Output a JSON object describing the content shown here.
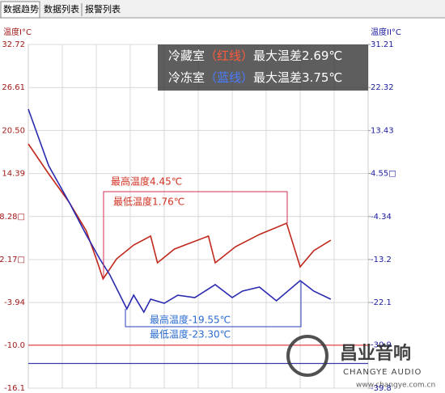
{
  "tabs": [
    "数据趋势",
    "数据列表",
    "报警列表"
  ],
  "chart_data": {
    "type": "line",
    "ylabel": "温度I°C",
    "y2label": "温度II°C",
    "xlim": [
      0,
      100
    ],
    "ylim": [
      -16.1,
      32.72
    ],
    "yticks": [
      32.72,
      26.61,
      {
        "value": 20.5,
        "label": "20.50"
      },
      14.39,
      {
        "value": 8.28,
        "label": "8.28□"
      },
      {
        "value": 2.17,
        "label": "2.17□"
      },
      -3.94,
      {
        "value": -10,
        "label": "-10.0"
      },
      -16.1
    ],
    "y2lim": [
      -39.8,
      31.21
    ],
    "y2ticks": [
      31.21,
      22.32,
      13.43,
      {
        "value": 4.55,
        "label": "4.55□"
      },
      -4.34,
      -13.2,
      -22.1,
      -30.9,
      -39.8
    ],
    "grid": true,
    "series": [
      {
        "name": "冷藏室",
        "tag": "（红线）",
        "note": "最大温差2.69℃",
        "color": "#c0281c",
        "axis": "y",
        "x": [
          0,
          6,
          12,
          17,
          20,
          22,
          26,
          31,
          36,
          38,
          43,
          53,
          55,
          61,
          68,
          76,
          80,
          84,
          89
        ],
        "values": [
          18.59,
          14.34,
          10.32,
          6.3,
          2.28,
          -0.59,
          2.28,
          4.23,
          5.5,
          1.71,
          3.66,
          5.5,
          1.71,
          4.0,
          5.73,
          7.33,
          1.13,
          3.43,
          4.92
        ]
      },
      {
        "name": "冷冻室",
        "tag": "（蓝线）",
        "note": "最大温差3.75℃",
        "color": "#2a2ab0",
        "axis": "y2",
        "x": [
          0,
          6,
          12,
          17,
          21,
          24,
          29,
          31,
          34,
          36,
          40,
          44,
          49,
          55,
          60,
          63,
          68,
          73,
          80,
          84,
          89
        ],
        "values": [
          17.84,
          6.15,
          -1.37,
          -8.05,
          -13.07,
          -16.41,
          -23.43,
          -20.58,
          -24.09,
          -21.42,
          -22.26,
          -20.59,
          -21.09,
          -18.41,
          -21.09,
          -19.75,
          -18.91,
          -21.75,
          -17.58,
          -19.75,
          -21.42
        ]
      }
    ],
    "reference_lines": [
      {
        "axis": "y",
        "value": -10,
        "color": "#e04848"
      },
      {
        "axis": "y2",
        "value": -34.7,
        "color": "#3a3aa8"
      }
    ],
    "annotations": [
      {
        "text": "最高温度4.45℃",
        "color": "#d03020"
      },
      {
        "text": "最低温度1.76℃",
        "color": "#d03020"
      },
      {
        "text": "最高温度-19.55℃",
        "color": "#2a6ad0"
      },
      {
        "text": "最低温度-23.30℃",
        "color": "#2a6ad0"
      }
    ]
  },
  "watermark": {
    "brand": "昌业音响",
    "sub": "CHANGYE AUDIO",
    "url": "www.changye.com.cn"
  }
}
